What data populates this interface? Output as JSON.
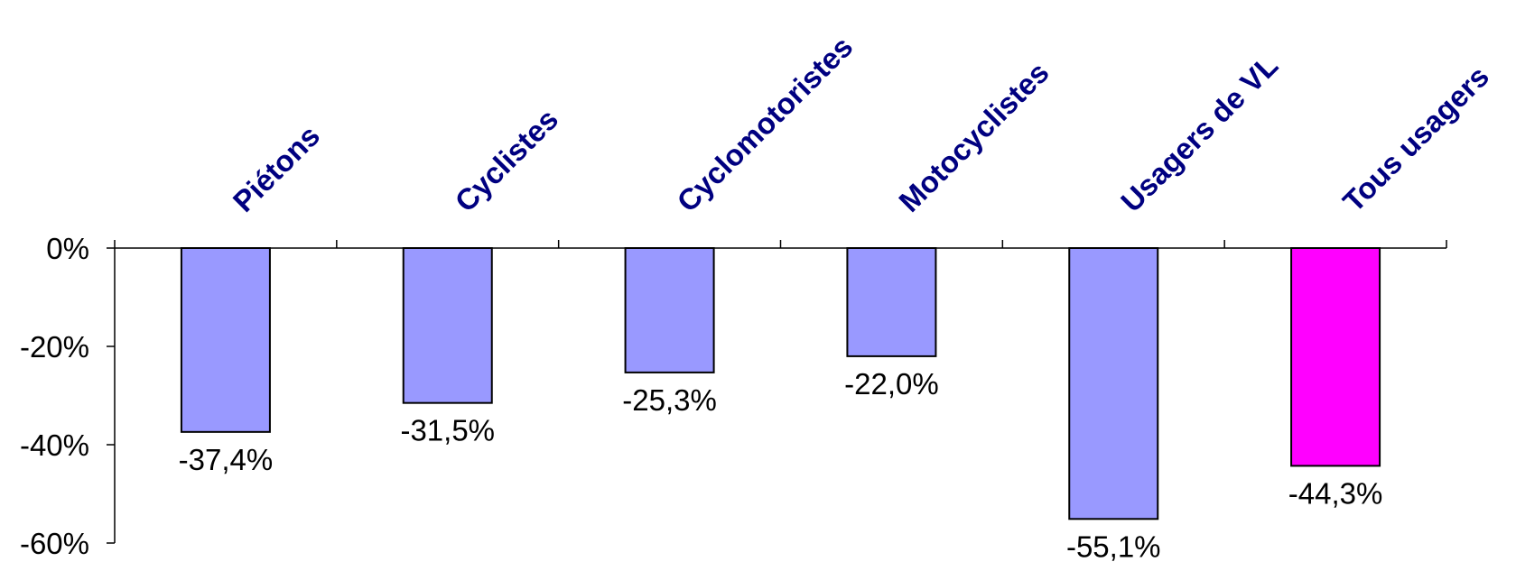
{
  "chart_data": {
    "type": "bar",
    "categories": [
      "Piétons",
      "Cyclistes",
      "Cyclomotoristes",
      "Motocyclistes",
      "Usagers de VL",
      "Tous usagers"
    ],
    "values": [
      -37.4,
      -31.5,
      -25.3,
      -22.0,
      -55.1,
      -44.3
    ],
    "data_labels": [
      "-37,4%",
      "-31,5%",
      "-25,3%",
      "-22,0%",
      "-55,1%",
      "-44,3%"
    ],
    "yticks": [
      0,
      -20,
      -40,
      -60
    ],
    "ytick_labels": [
      "0%",
      "-20%",
      "-40%",
      "-60%"
    ],
    "ylim": [
      -60,
      0
    ],
    "title": "",
    "xlabel": "",
    "ylabel": "",
    "grid": false,
    "legend": "none",
    "colors": {
      "bar": "#9999ff",
      "highlight_bar": "#ff00ff",
      "category_text": "#000080",
      "axis": "#000000"
    },
    "highlight_index": 5
  }
}
